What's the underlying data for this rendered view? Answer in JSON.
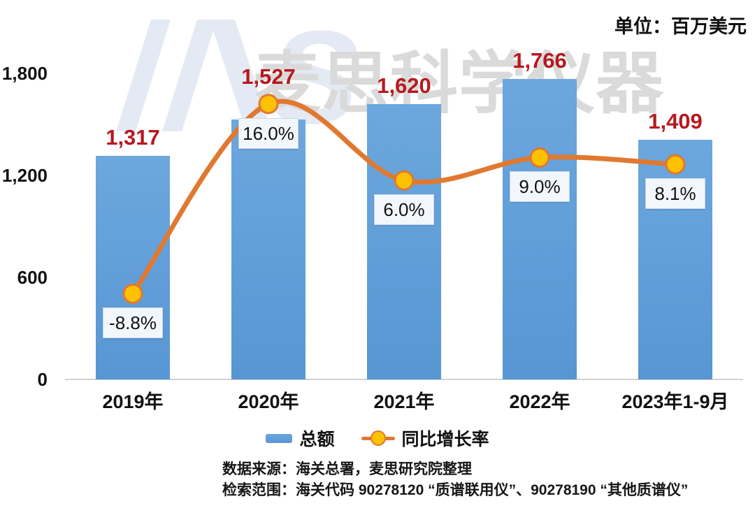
{
  "unit_label": "单位：百万美元",
  "watermark": {
    "logo": "MS",
    "text": "麦思科学仪器"
  },
  "chart_data": {
    "type": "bar",
    "subtype": "bar-line-combo",
    "title": "",
    "unit": "单位：百万美元",
    "categories": [
      "2019年",
      "2020年",
      "2021年",
      "2022年",
      "2023年1-9月"
    ],
    "series": [
      {
        "name": "总额",
        "type": "bar",
        "axis": "primary",
        "values": [
          1317,
          1527,
          1620,
          1766,
          1409
        ],
        "labels": [
          "1,317",
          "1,527",
          "1,620",
          "1,766",
          "1,409"
        ],
        "color": "#5B9BD5"
      },
      {
        "name": "同比增长率",
        "type": "line",
        "axis": "secondary",
        "values": [
          -8.8,
          16.0,
          6.0,
          9.0,
          8.1
        ],
        "labels": [
          "-8.8%",
          "16.0%",
          "6.0%",
          "9.0%",
          "8.1%"
        ],
        "line_color": "#E0792F",
        "marker_fill": "#FFC104"
      }
    ],
    "y_axis": {
      "min": 0,
      "max": 1800,
      "ticks": [
        {
          "value": 0,
          "label": "0"
        },
        {
          "value": 600,
          "label": "600"
        },
        {
          "value": 1200,
          "label": "1,200"
        },
        {
          "value": 1800,
          "label": "1,800"
        }
      ]
    },
    "y2_axis": {
      "min": -20,
      "max": 20,
      "visible": false
    },
    "grid": false,
    "legend": [
      "总额",
      "同比增长率"
    ],
    "legend_position": "bottom"
  },
  "legend": {
    "bar_label": "总额",
    "line_label": "同比增长率"
  },
  "footer": {
    "line1": "数据来源：海关总署，麦思研究院整理",
    "line2": "检索范围：海关代码 90278120 “质谱联用仪”、90278190 “其他质谱仪”"
  },
  "colors": {
    "bar_top": "#6CA7DE",
    "bar_bottom": "#5896D3",
    "line": "#E0792F",
    "marker": "#FFC104",
    "value_label": "#B6191F",
    "watermark_text": "#DADADA",
    "watermark_logo": "#E4EAF3"
  }
}
